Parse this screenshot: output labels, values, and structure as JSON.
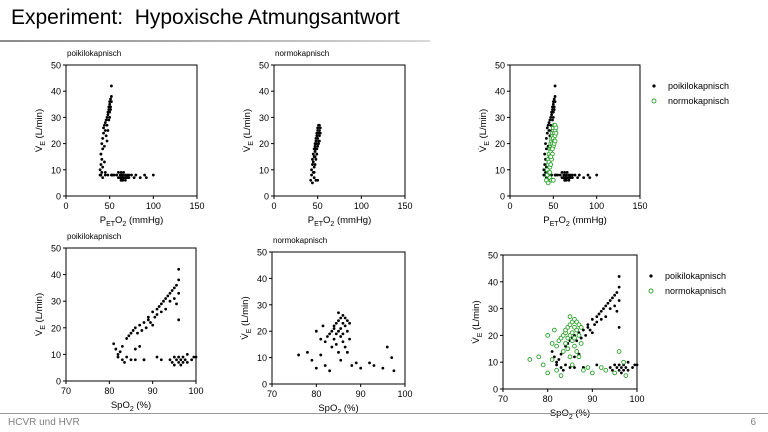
{
  "slide": {
    "title": "Experiment:  Hypoxische Atmungsantwort",
    "footer": "HCVR und HVR",
    "page_number": "6"
  },
  "colors": {
    "poikilo": "#000000",
    "normo": "#2ca02c"
  },
  "chart_data": [
    {
      "type": "scatter",
      "subtitle": "poikilokapnisch",
      "xlabel": "PETO2 (mmHg)",
      "ylabel": "VE (L/min)",
      "xlim": [
        0,
        150
      ],
      "ylim": [
        0,
        50
      ],
      "xticks": [
        0,
        50,
        100,
        150
      ],
      "yticks": [
        0,
        10,
        20,
        30,
        40,
        50
      ],
      "series": [
        {
          "key": "poikilo",
          "points": [
            [
              39,
              8
            ],
            [
              39,
              10
            ],
            [
              40,
              8
            ],
            [
              40,
              12
            ],
            [
              40,
              16
            ],
            [
              41,
              9
            ],
            [
              41,
              20
            ],
            [
              41,
              14
            ],
            [
              42,
              18
            ],
            [
              42,
              22
            ],
            [
              42,
              7
            ],
            [
              42,
              11
            ],
            [
              43,
              24
            ],
            [
              43,
              26
            ],
            [
              44,
              19
            ],
            [
              44,
              27
            ],
            [
              44,
              13
            ],
            [
              45,
              28
            ],
            [
              45,
              25
            ],
            [
              45,
              8
            ],
            [
              46,
              29
            ],
            [
              46,
              23
            ],
            [
              47,
              30
            ],
            [
              47,
              27
            ],
            [
              47,
              21
            ],
            [
              48,
              31
            ],
            [
              48,
              32
            ],
            [
              48,
              25
            ],
            [
              49,
              33
            ],
            [
              49,
              29
            ],
            [
              49,
              34
            ],
            [
              50,
              35
            ],
            [
              50,
              30
            ],
            [
              50,
              36
            ],
            [
              50,
              32
            ],
            [
              51,
              34
            ],
            [
              51,
              37
            ],
            [
              51,
              33
            ],
            [
              52,
              42
            ],
            [
              52,
              38
            ],
            [
              52,
              36
            ],
            [
              52,
              8
            ],
            [
              48,
              8
            ],
            [
              45,
              9
            ],
            [
              53,
              8
            ],
            [
              55,
              8
            ],
            [
              58,
              8
            ],
            [
              60,
              7
            ],
            [
              60,
              9
            ],
            [
              62,
              7
            ],
            [
              62,
              8
            ],
            [
              63,
              6
            ],
            [
              63,
              9
            ],
            [
              64,
              7
            ],
            [
              64,
              8
            ],
            [
              65,
              6
            ],
            [
              65,
              8
            ],
            [
              66,
              7
            ],
            [
              66,
              9
            ],
            [
              67,
              7
            ],
            [
              68,
              8
            ],
            [
              68,
              6
            ],
            [
              69,
              7
            ],
            [
              70,
              8
            ],
            [
              70,
              7
            ],
            [
              72,
              7
            ],
            [
              72,
              8
            ],
            [
              75,
              8
            ],
            [
              78,
              7
            ],
            [
              80,
              8
            ],
            [
              85,
              7
            ],
            [
              90,
              8
            ],
            [
              92,
              7
            ],
            [
              100,
              8
            ]
          ]
        }
      ]
    },
    {
      "type": "scatter",
      "subtitle": "normokapnisch",
      "xlabel": "PETO2 (mmHg)",
      "ylabel": "VE (L/min)",
      "xlim": [
        0,
        150
      ],
      "ylim": [
        0,
        50
      ],
      "xticks": [
        0,
        50,
        100,
        150
      ],
      "yticks": [
        0,
        10,
        20,
        30,
        40,
        50
      ],
      "series": [
        {
          "key": "normo_black",
          "points": [
            [
              42,
              6
            ],
            [
              43,
              8
            ],
            [
              43,
              10
            ],
            [
              44,
              5
            ],
            [
              44,
              12
            ],
            [
              44,
              14
            ],
            [
              45,
              9
            ],
            [
              45,
              13
            ],
            [
              45,
              16
            ],
            [
              46,
              11
            ],
            [
              46,
              15
            ],
            [
              46,
              18
            ],
            [
              46,
              7
            ],
            [
              47,
              12
            ],
            [
              47,
              17
            ],
            [
              47,
              19
            ],
            [
              47,
              20
            ],
            [
              48,
              14
            ],
            [
              48,
              18
            ],
            [
              48,
              21
            ],
            [
              48,
              22
            ],
            [
              49,
              16
            ],
            [
              49,
              20
            ],
            [
              49,
              23
            ],
            [
              49,
              24
            ],
            [
              50,
              19
            ],
            [
              50,
              22
            ],
            [
              50,
              25
            ],
            [
              50,
              26
            ],
            [
              51,
              21
            ],
            [
              51,
              24
            ],
            [
              51,
              27
            ],
            [
              52,
              23
            ],
            [
              52,
              25
            ],
            [
              52,
              27
            ],
            [
              53,
              26
            ],
            [
              53,
              24
            ],
            [
              48,
              6
            ],
            [
              50,
              6
            ],
            [
              46,
              9
            ],
            [
              51,
              20
            ],
            [
              49,
              18
            ],
            [
              47,
              15
            ],
            [
              52,
              21
            ]
          ]
        }
      ]
    },
    {
      "type": "scatter",
      "xlabel": "PETO2 (mmHg)",
      "ylabel": "VE (L/min)",
      "xlim": [
        0,
        150
      ],
      "ylim": [
        0,
        50
      ],
      "xticks": [
        0,
        50,
        100,
        150
      ],
      "yticks": [
        0,
        10,
        20,
        30,
        40,
        50
      ],
      "legend": [
        {
          "name": "poikilokapnisch",
          "key": "poikilo"
        },
        {
          "name": "normokapnisch",
          "key": "normo"
        }
      ],
      "series": [
        {
          "key": "poikilo",
          "ref": 0
        },
        {
          "key": "normo",
          "ref": 1
        }
      ]
    },
    {
      "type": "scatter",
      "subtitle": "poikilokapnisch",
      "xlabel": "SpO2 (%)",
      "ylabel": "VE (L/min)",
      "xlim": [
        70,
        100
      ],
      "ylim": [
        0,
        50
      ],
      "xticks": [
        70,
        80,
        90,
        100
      ],
      "yticks": [
        0,
        10,
        20,
        30,
        40,
        50
      ],
      "series": [
        {
          "key": "poikilo",
          "points": [
            [
              81,
              14
            ],
            [
              81.5,
              12
            ],
            [
              82,
              10
            ],
            [
              82,
              9
            ],
            [
              82.5,
              11
            ],
            [
              83,
              8
            ],
            [
              83,
              13
            ],
            [
              83.5,
              7
            ],
            [
              84,
              16
            ],
            [
              84,
              9
            ],
            [
              84.5,
              17
            ],
            [
              85,
              18
            ],
            [
              85,
              8
            ],
            [
              85.5,
              19
            ],
            [
              86,
              20
            ],
            [
              86,
              12
            ],
            [
              86.5,
              18
            ],
            [
              87,
              21
            ],
            [
              87,
              13
            ],
            [
              87.5,
              19
            ],
            [
              88,
              22
            ],
            [
              88,
              8
            ],
            [
              88.5,
              20
            ],
            [
              89,
              23
            ],
            [
              89,
              24
            ],
            [
              89.5,
              22
            ],
            [
              90,
              26
            ],
            [
              90,
              21
            ],
            [
              90.5,
              24
            ],
            [
              91,
              27
            ],
            [
              91,
              25
            ],
            [
              91.5,
              28
            ],
            [
              92,
              29
            ],
            [
              92,
              26
            ],
            [
              92.5,
              30
            ],
            [
              93,
              31
            ],
            [
              93,
              27
            ],
            [
              93.5,
              32
            ],
            [
              94,
              33
            ],
            [
              94,
              30
            ],
            [
              94.5,
              34
            ],
            [
              95,
              35
            ],
            [
              95,
              31
            ],
            [
              95.5,
              36
            ],
            [
              95.5,
              29
            ],
            [
              96,
              42
            ],
            [
              96,
              38
            ],
            [
              96,
              33
            ],
            [
              96,
              23
            ],
            [
              94,
              8
            ],
            [
              94.5,
              7
            ],
            [
              95,
              9
            ],
            [
              95,
              6
            ],
            [
              95.5,
              8
            ],
            [
              96,
              7
            ],
            [
              96,
              9
            ],
            [
              96.5,
              6
            ],
            [
              96.5,
              8
            ],
            [
              97,
              7
            ],
            [
              97,
              9
            ],
            [
              97.5,
              8
            ],
            [
              98,
              7
            ],
            [
              98,
              10
            ],
            [
              99,
              8
            ],
            [
              99.5,
              9
            ],
            [
              100,
              9
            ],
            [
              86,
              8
            ],
            [
              88,
              8
            ],
            [
              91,
              9
            ],
            [
              92,
              8
            ]
          ]
        }
      ]
    },
    {
      "type": "scatter",
      "subtitle": "normokapnisch",
      "xlabel": "SpO2 (%)",
      "ylabel": "VE (L/min)",
      "xlim": [
        70,
        100
      ],
      "ylim": [
        0,
        50
      ],
      "xticks": [
        70,
        80,
        90,
        100
      ],
      "yticks": [
        0,
        10,
        20,
        30,
        40,
        50
      ],
      "series": [
        {
          "key": "normo_black",
          "points": [
            [
              76,
              11
            ],
            [
              78,
              12
            ],
            [
              79,
              9
            ],
            [
              80,
              6
            ],
            [
              80,
              20
            ],
            [
              81,
              11
            ],
            [
              81,
              17
            ],
            [
              81.5,
              22
            ],
            [
              82,
              7
            ],
            [
              82,
              16
            ],
            [
              82.5,
              18
            ],
            [
              83,
              19
            ],
            [
              83,
              5
            ],
            [
              83.5,
              20
            ],
            [
              83.5,
              14
            ],
            [
              84,
              21
            ],
            [
              84,
              22
            ],
            [
              84,
              17
            ],
            [
              84.5,
              23
            ],
            [
              84.5,
              19
            ],
            [
              84.5,
              15
            ],
            [
              85,
              24
            ],
            [
              85,
              27
            ],
            [
              85,
              20
            ],
            [
              85,
              12
            ],
            [
              85.5,
              25
            ],
            [
              85.5,
              21
            ],
            [
              85.5,
              18
            ],
            [
              85.5,
              9
            ],
            [
              86,
              26
            ],
            [
              86,
              23
            ],
            [
              86,
              19
            ],
            [
              86,
              16
            ],
            [
              86.5,
              25
            ],
            [
              86.5,
              22
            ],
            [
              86.5,
              14
            ],
            [
              87,
              24
            ],
            [
              87,
              20
            ],
            [
              87,
              12
            ],
            [
              87.5,
              23
            ],
            [
              87.5,
              17
            ],
            [
              88,
              7
            ],
            [
              89,
              8
            ],
            [
              90,
              6
            ],
            [
              92,
              8
            ],
            [
              93,
              7
            ],
            [
              95,
              6
            ],
            [
              96,
              14
            ],
            [
              97,
              10
            ],
            [
              97.5,
              5
            ]
          ]
        }
      ]
    },
    {
      "type": "scatter",
      "xlabel": "SpO2 (%)",
      "ylabel": "VE (L/min)",
      "xlim": [
        70,
        100
      ],
      "ylim": [
        0,
        50
      ],
      "xticks": [
        70,
        80,
        90,
        100
      ],
      "yticks": [
        0,
        10,
        20,
        30,
        40,
        50
      ],
      "legend": [
        {
          "name": "poikilokapnisch",
          "key": "poikilo"
        },
        {
          "name": "normokapnisch",
          "key": "normo"
        }
      ],
      "series": [
        {
          "key": "poikilo",
          "ref": 3
        },
        {
          "key": "normo",
          "ref": 4
        }
      ]
    }
  ]
}
